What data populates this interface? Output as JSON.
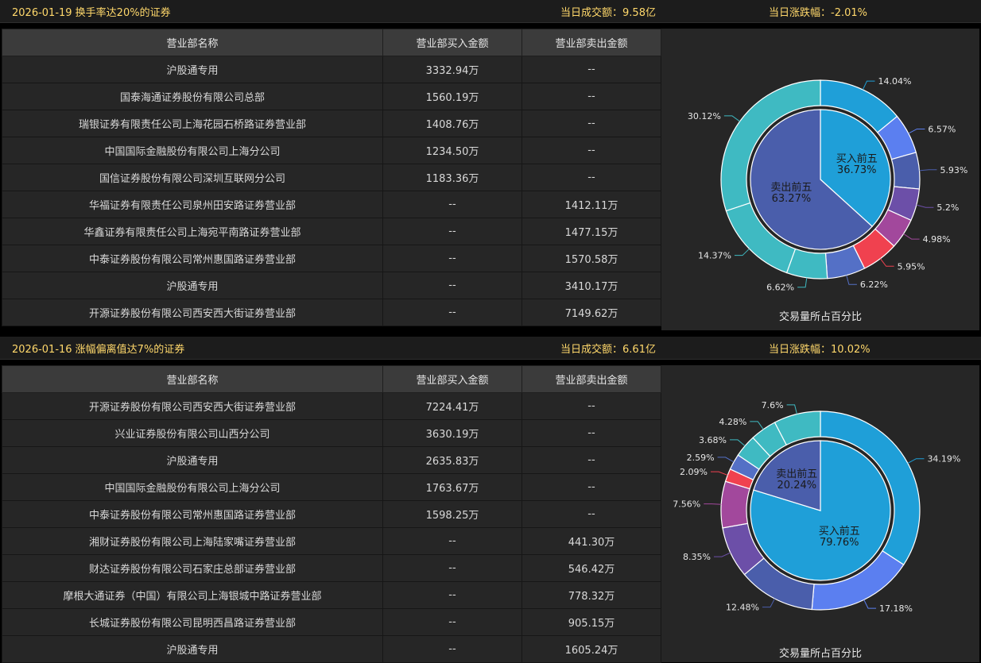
{
  "panels": [
    {
      "title": "2026-01-19 换手率达20%的证券",
      "volume_label": "当日成交额：",
      "volume_value": "9.58亿",
      "change_label": "当日涨跌幅：",
      "change_value": "-2.01%",
      "columns": [
        "营业部名称",
        "营业部买入金额",
        "营业部卖出金额"
      ],
      "rows": [
        {
          "name": "沪股通专用",
          "buy": "3332.94万",
          "sell": "--"
        },
        {
          "name": "国泰海通证券股份有限公司总部",
          "buy": "1560.19万",
          "sell": "--"
        },
        {
          "name": "瑞银证券有限责任公司上海花园石桥路证券营业部",
          "buy": "1408.76万",
          "sell": "--"
        },
        {
          "name": "中国国际金融股份有限公司上海分公司",
          "buy": "1234.50万",
          "sell": "--"
        },
        {
          "name": "国信证券股份有限公司深圳互联网分公司",
          "buy": "1183.36万",
          "sell": "--"
        },
        {
          "name": "华福证券有限责任公司泉州田安路证券营业部",
          "buy": "--",
          "sell": "1412.11万"
        },
        {
          "name": "华鑫证券有限责任公司上海宛平南路证券营业部",
          "buy": "--",
          "sell": "1477.15万"
        },
        {
          "name": "中泰证券股份有限公司常州惠国路证券营业部",
          "buy": "--",
          "sell": "1570.58万"
        },
        {
          "name": "沪股通专用",
          "buy": "--",
          "sell": "3410.17万"
        },
        {
          "name": "开源证券股份有限公司西安西大街证券营业部",
          "buy": "--",
          "sell": "7149.62万"
        }
      ],
      "caption": "交易量所占百分比"
    },
    {
      "title": "2026-01-16 涨幅偏离值达7%的证券",
      "volume_label": "当日成交额：",
      "volume_value": "6.61亿",
      "change_label": "当日涨跌幅：",
      "change_value": "10.02%",
      "columns": [
        "营业部名称",
        "营业部买入金额",
        "营业部卖出金额"
      ],
      "rows": [
        {
          "name": "开源证券股份有限公司西安西大街证券营业部",
          "buy": "7224.41万",
          "sell": "--"
        },
        {
          "name": "兴业证券股份有限公司山西分公司",
          "buy": "3630.19万",
          "sell": "--"
        },
        {
          "name": "沪股通专用",
          "buy": "2635.83万",
          "sell": "--"
        },
        {
          "name": "中国国际金融股份有限公司上海分公司",
          "buy": "1763.67万",
          "sell": "--"
        },
        {
          "name": "中泰证券股份有限公司常州惠国路证券营业部",
          "buy": "1598.25万",
          "sell": "--"
        },
        {
          "name": "湘财证券股份有限公司上海陆家嘴证券营业部",
          "buy": "--",
          "sell": "441.30万"
        },
        {
          "name": "财达证券股份有限公司石家庄总部证券营业部",
          "buy": "--",
          "sell": "546.42万"
        },
        {
          "name": "摩根大通证券（中国）有限公司上海银城中路证券营业部",
          "buy": "--",
          "sell": "778.32万"
        },
        {
          "name": "长城证券股份有限公司昆明西昌路证券营业部",
          "buy": "--",
          "sell": "905.15万"
        },
        {
          "name": "沪股通专用",
          "buy": "--",
          "sell": "1605.24万"
        }
      ],
      "caption": "交易量所占百分比"
    }
  ],
  "colors": {
    "buy_text": "#f0414f",
    "sell_text": "#27d38a",
    "header_text": "#ffd86b",
    "inner_buy": "#1f9fd8",
    "inner_sell": "#4a5eab",
    "outer": [
      "#1f9fd8",
      "#5b7ff0",
      "#4a5eab",
      "#6c4fa8",
      "#a2489c",
      "#f0414f",
      "#5470c6",
      "#3fbac2",
      "#3fbac2",
      "#3fbac2"
    ]
  },
  "chart_data": [
    {
      "type": "pie",
      "inner": {
        "labels": [
          "买入前五",
          "卖出前五"
        ],
        "values": [
          36.73,
          63.27
        ]
      },
      "outer": {
        "values": [
          14.04,
          6.57,
          5.93,
          5.2,
          4.98,
          5.95,
          6.22,
          6.62,
          14.37,
          30.12
        ],
        "labels": [
          "14.04%",
          "6.57%",
          "5.93%",
          "5.2%",
          "4.98%",
          "5.95%",
          "6.22%",
          "6.62%",
          "14.37%",
          "30.12%"
        ],
        "colors": [
          "#1f9fd8",
          "#5b7ff0",
          "#4a5eab",
          "#6c4fa8",
          "#a2489c",
          "#f0414f",
          "#5470c6",
          "#3fbac2",
          "#3fbac2",
          "#3fbac2"
        ]
      }
    },
    {
      "type": "pie",
      "inner": {
        "labels": [
          "买入前五",
          "卖出前五"
        ],
        "values": [
          79.76,
          20.24
        ]
      },
      "outer": {
        "values": [
          34.19,
          17.18,
          12.48,
          8.35,
          7.56,
          2.09,
          2.59,
          3.68,
          4.28,
          7.6
        ],
        "labels": [
          "34.19%",
          "17.18%",
          "12.48%",
          "8.35%",
          "7.56%",
          "2.09%",
          "2.59%",
          "3.68%",
          "4.28%",
          "7.6%"
        ],
        "colors": [
          "#1f9fd8",
          "#5b7ff0",
          "#4a5eab",
          "#6c4fa8",
          "#a2489c",
          "#f0414f",
          "#5470c6",
          "#3fbac2",
          "#3fbac2",
          "#3fbac2"
        ]
      }
    }
  ]
}
